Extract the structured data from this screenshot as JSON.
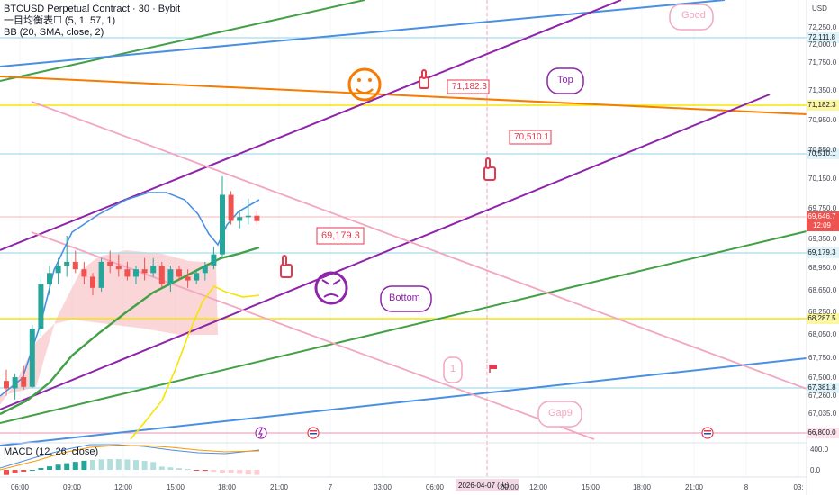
{
  "legend": {
    "symbol_line": "BTCUSD Perpetual Contract · 30 · Bybit",
    "ichimoku_line": "一目均衡表☐ (5, 1, 57, 1)",
    "bb_line": "BB (20, SMA, close, 2)",
    "macd_line": "MACD (12, 26, close)"
  },
  "axis": {
    "currency": "USD",
    "price_ticks": [
      "72,250.0",
      "72,000.0",
      "71,750.0",
      "71,350.0",
      "70,950.0",
      "70,550.0",
      "70,150.0",
      "69,750.0",
      "69,350.0",
      "68,950.0",
      "68,650.0",
      "68,250.0",
      "68,050.0",
      "67,750.0",
      "67,500.0",
      "67,260.0",
      "67,035.0"
    ],
    "macd_ticks": [
      "400.0",
      "0.0"
    ],
    "time_ticks": [
      "06:00",
      "09:00",
      "12:00",
      "15:00",
      "18:00",
      "21:00",
      "7",
      "03:00",
      "06:00",
      "09:00",
      "12:00",
      "15:00",
      "18:00",
      "21:00",
      "8",
      "03:"
    ],
    "crosshair_date": "2026-04-07 (火)"
  },
  "badges": {
    "l1": "72,111.8",
    "l2": "71,182.3",
    "l3": "70,510.1",
    "current_price": "69,646.7",
    "countdown": "12:09",
    "l4": "69,179.3",
    "l5": "68,287.5",
    "l6": "67,381.8",
    "l7": "66,800.0"
  },
  "callouts": {
    "price_a": "71,182.3",
    "price_b": "70,510.1",
    "price_c": "69,179.3",
    "top": "Top",
    "good": "Good",
    "bottom": "Bottom",
    "gap": "Gap9",
    "one": "1"
  },
  "chart_data": {
    "type": "candlestick",
    "interval": "30",
    "y_unit": "USD",
    "candles": [
      {
        "t": "05:30",
        "o": 67500,
        "h": 67650,
        "l": 67300,
        "c": 67400
      },
      {
        "t": "06:00",
        "o": 67400,
        "h": 67600,
        "l": 67250,
        "c": 67550
      },
      {
        "t": "06:30",
        "o": 67550,
        "h": 67700,
        "l": 67380,
        "c": 67420
      },
      {
        "t": "07:00",
        "o": 67420,
        "h": 68250,
        "l": 67400,
        "c": 68200
      },
      {
        "t": "07:30",
        "o": 68200,
        "h": 68900,
        "l": 68100,
        "c": 68800
      },
      {
        "t": "08:00",
        "o": 68800,
        "h": 69050,
        "l": 68650,
        "c": 68950
      },
      {
        "t": "08:30",
        "o": 68950,
        "h": 69150,
        "l": 68800,
        "c": 69050
      },
      {
        "t": "09:00",
        "o": 69050,
        "h": 69450,
        "l": 68900,
        "c": 69100
      },
      {
        "t": "09:30",
        "o": 69100,
        "h": 69250,
        "l": 68950,
        "c": 69000
      },
      {
        "t": "10:00",
        "o": 69000,
        "h": 69100,
        "l": 68800,
        "c": 68900
      },
      {
        "t": "10:30",
        "o": 68900,
        "h": 68950,
        "l": 68650,
        "c": 68750
      },
      {
        "t": "11:00",
        "o": 68750,
        "h": 69150,
        "l": 68700,
        "c": 69100
      },
      {
        "t": "11:30",
        "o": 69100,
        "h": 69250,
        "l": 68950,
        "c": 69050
      },
      {
        "t": "12:00",
        "o": 69050,
        "h": 69200,
        "l": 68900,
        "c": 69000
      },
      {
        "t": "12:30",
        "o": 69000,
        "h": 69100,
        "l": 68850,
        "c": 68900
      },
      {
        "t": "13:00",
        "o": 68900,
        "h": 69050,
        "l": 68800,
        "c": 69000
      },
      {
        "t": "13:30",
        "o": 69000,
        "h": 69150,
        "l": 68850,
        "c": 68950
      },
      {
        "t": "14:00",
        "o": 68950,
        "h": 69150,
        "l": 68900,
        "c": 69050
      },
      {
        "t": "14:30",
        "o": 69050,
        "h": 69100,
        "l": 68750,
        "c": 68800
      },
      {
        "t": "15:00",
        "o": 68800,
        "h": 69050,
        "l": 68700,
        "c": 69000
      },
      {
        "t": "15:30",
        "o": 69000,
        "h": 69050,
        "l": 68850,
        "c": 68900
      },
      {
        "t": "16:00",
        "o": 68900,
        "h": 69000,
        "l": 68750,
        "c": 68850
      },
      {
        "t": "16:30",
        "o": 68850,
        "h": 69000,
        "l": 68800,
        "c": 68950
      },
      {
        "t": "17:00",
        "o": 68950,
        "h": 69100,
        "l": 68850,
        "c": 69050
      },
      {
        "t": "17:30",
        "o": 69050,
        "h": 69300,
        "l": 69000,
        "c": 69200
      },
      {
        "t": "18:00",
        "o": 69200,
        "h": 70250,
        "l": 69150,
        "c": 70000
      },
      {
        "t": "18:30",
        "o": 70000,
        "h": 70050,
        "l": 69600,
        "c": 69650
      },
      {
        "t": "19:00",
        "o": 69650,
        "h": 69800,
        "l": 69550,
        "c": 69700
      },
      {
        "t": "19:30",
        "o": 69700,
        "h": 69950,
        "l": 69600,
        "c": 69720
      },
      {
        "t": "20:00",
        "o": 69720,
        "h": 69780,
        "l": 69600,
        "c": 69646.7
      }
    ]
  },
  "colors": {
    "up": "#26a69a",
    "down": "#ef5350",
    "bb_band": "#4a90e2",
    "bb_mid": "#43a047",
    "kumo": "#f8c8cc",
    "purple": "#8e24aa",
    "orange": "#f57c00",
    "yellow": "#f5e500",
    "pink_line": "#f2a6c0"
  }
}
